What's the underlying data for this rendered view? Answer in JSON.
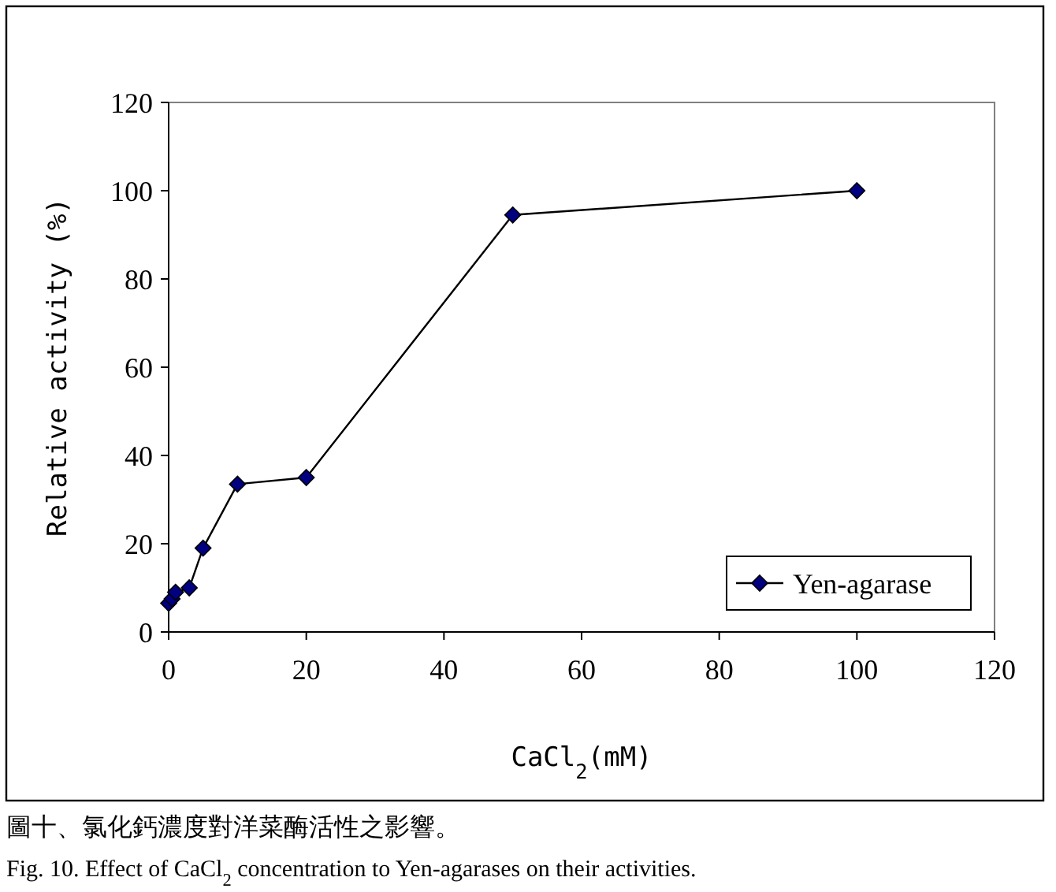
{
  "chart_data": {
    "type": "line",
    "xlabel": "CaCl$_{2}$(mM)",
    "ylabel": "Relative activity (%)",
    "x": [
      0,
      0.5,
      1,
      3,
      5,
      10,
      20,
      50,
      100
    ],
    "series": [
      {
        "name": "Yen-agarase",
        "color": "#000080",
        "values": [
          6.5,
          7.5,
          9,
          10,
          19,
          33.5,
          35,
          94.5,
          100
        ]
      }
    ],
    "xlim": [
      0,
      120
    ],
    "xticks": [
      0,
      20,
      40,
      60,
      80,
      100,
      120
    ],
    "ylim": [
      0,
      120
    ],
    "yticks": [
      0,
      20,
      40,
      60,
      80,
      100,
      120
    ],
    "marker": "diamond",
    "legend": "bottom right",
    "grid": false,
    "annotations": [
      "圖十、氯化鈣濃度對洋菜酶活性之影響。",
      "Fig. 10. Effect of CaCl$_{2}$ concentration to Yen-agarases on their activities."
    ]
  }
}
